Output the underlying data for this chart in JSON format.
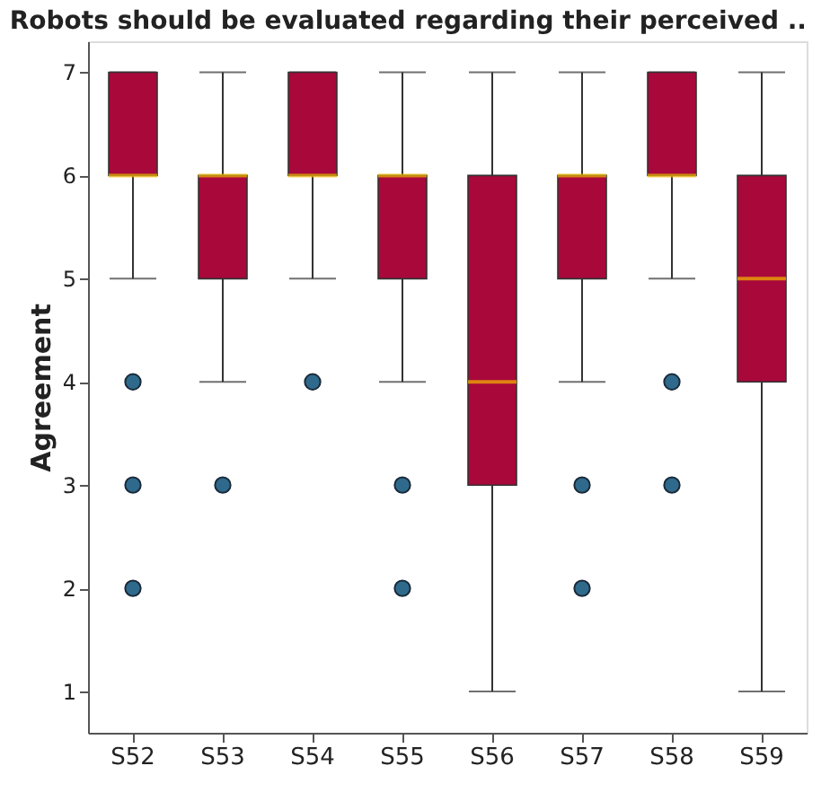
{
  "chart_data": {
    "type": "box",
    "title": "Robots should be evaluated regarding their perceived ..",
    "ylabel": "Agreement",
    "categories": [
      "S52",
      "S53",
      "S54",
      "S55",
      "S56",
      "S57",
      "S58",
      "S59"
    ],
    "ylim": [
      0.6,
      7.3
    ],
    "yticks": [
      1,
      2,
      3,
      4,
      5,
      6,
      7
    ],
    "grid": false,
    "series": [
      {
        "color": "#a8083a",
        "boxes": [
          {
            "low": 5,
            "q1": 6,
            "median": 6,
            "q3": 7,
            "high": 7,
            "outliers": [
              4,
              3,
              2
            ]
          },
          {
            "low": 4,
            "q1": 5,
            "median": 6,
            "q3": 6,
            "high": 7,
            "outliers": [
              3
            ]
          },
          {
            "low": 5,
            "q1": 6,
            "median": 6,
            "q3": 7,
            "high": 7,
            "outliers": [
              4
            ]
          },
          {
            "low": 4,
            "q1": 5,
            "median": 6,
            "q3": 6,
            "high": 7,
            "outliers": [
              3,
              2
            ]
          },
          {
            "low": 1,
            "q1": 3,
            "median": 4,
            "q3": 6,
            "high": 7
          },
          {
            "low": 4,
            "q1": 5,
            "median": 6,
            "q3": 6,
            "high": 7,
            "outliers": [
              3,
              2
            ]
          },
          {
            "low": 5,
            "q1": 6,
            "median": 6,
            "q3": 7,
            "high": 7,
            "outliers": [
              4,
              3
            ]
          },
          {
            "low": 1,
            "q1": 4,
            "median": 5,
            "q3": 6,
            "high": 7
          }
        ]
      }
    ]
  }
}
